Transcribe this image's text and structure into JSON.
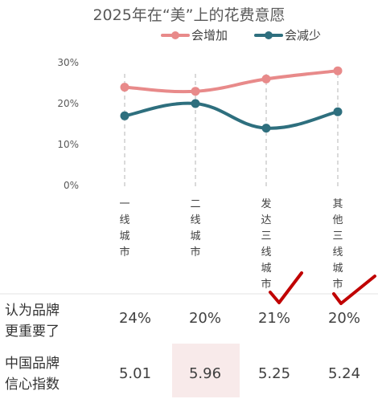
{
  "chart_data": {
    "type": "line",
    "title": "2025年在“美”上的花费意愿",
    "categories": [
      "一线城市",
      "二线城市",
      "发达三线城市",
      "其他三线城市"
    ],
    "ylim": [
      0,
      30
    ],
    "yticks": [
      "30%",
      "20%",
      "10%",
      "0%"
    ],
    "series": [
      {
        "name": "会增加",
        "color": "#E88A8A",
        "values": [
          24,
          23,
          26,
          28
        ]
      },
      {
        "name": "会减少",
        "color": "#2E6F7E",
        "values": [
          17,
          20,
          14,
          18
        ]
      }
    ],
    "legend_position": "top",
    "grid": false
  },
  "table": {
    "rows": [
      {
        "label_lines": [
          "认为品牌",
          "更重要了"
        ],
        "values": [
          "24%",
          "20%",
          "21%",
          "20%"
        ]
      },
      {
        "label_lines": [
          "中国品牌",
          "信心指数"
        ],
        "values": [
          "5.01",
          "5.96",
          "5.25",
          "5.24"
        ]
      }
    ],
    "highlight_cell_color": "#F8EAEA",
    "check_color": "#C00000"
  }
}
